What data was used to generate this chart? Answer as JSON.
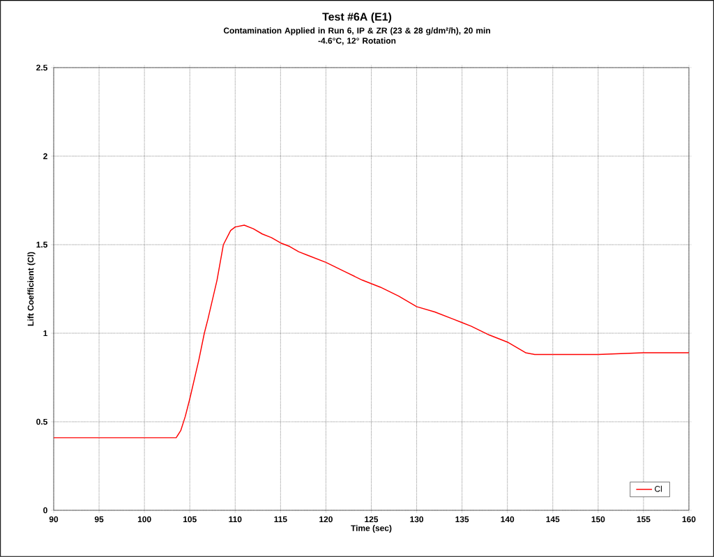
{
  "chart_data": {
    "type": "line",
    "title": "Test #6A (E1)",
    "subtitle": "Contamination Applied in Run 6, IP & ZR (23 & 28 g/dm²/h), 20 min\n-4.6°C, 12° Rotation",
    "xlabel": "Time (sec)",
    "ylabel": "Lift Coefficient (Cl)",
    "xlim": [
      90,
      160
    ],
    "xticks": [
      90,
      95,
      100,
      105,
      110,
      115,
      120,
      125,
      130,
      135,
      140,
      145,
      150,
      155,
      160
    ],
    "ylim": [
      0,
      2.5
    ],
    "yticks": [
      0,
      0.5,
      1,
      1.5,
      2,
      2.5
    ],
    "grid": true,
    "legend": "bottom right",
    "marker": "none",
    "line_style": "solid",
    "series": [
      {
        "name": "Cl",
        "color": "#ff0000",
        "x": [
          90,
          95,
          100,
          103.5,
          104,
          104.5,
          105,
          106,
          106.6,
          107,
          108,
          108.7,
          109.5,
          110,
          111,
          112,
          113,
          114,
          115,
          116,
          117,
          118,
          120,
          122,
          124,
          125,
          126,
          128,
          130,
          132,
          134,
          135,
          136,
          138,
          140,
          141,
          142,
          143,
          145,
          150,
          155,
          160
        ],
        "values": [
          0.41,
          0.41,
          0.41,
          0.41,
          0.45,
          0.53,
          0.63,
          0.85,
          1.0,
          1.08,
          1.3,
          1.5,
          1.58,
          1.6,
          1.61,
          1.59,
          1.56,
          1.54,
          1.51,
          1.49,
          1.46,
          1.44,
          1.4,
          1.35,
          1.3,
          1.28,
          1.26,
          1.21,
          1.15,
          1.12,
          1.08,
          1.06,
          1.04,
          0.99,
          0.95,
          0.92,
          0.89,
          0.88,
          0.88,
          0.88,
          0.89,
          0.89
        ]
      }
    ]
  }
}
